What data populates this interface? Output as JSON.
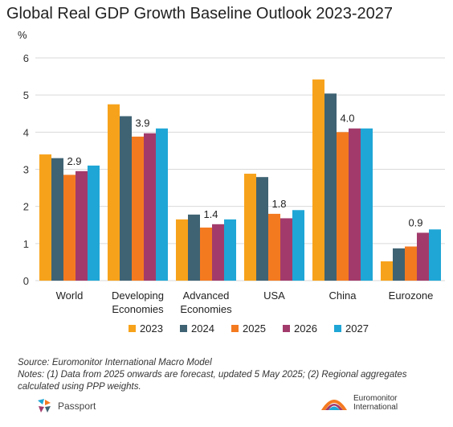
{
  "header": {
    "title": "Global Real GDP Growth Baseline Outlook 2023-2027",
    "unit": "%"
  },
  "chart_data": {
    "type": "bar",
    "title": "Global Real GDP Growth Baseline Outlook 2023-2027",
    "ylabel": "%",
    "xlabel": "",
    "ylim": [
      0,
      6
    ],
    "yticks": [
      0,
      1,
      2,
      3,
      4,
      5,
      6
    ],
    "grid": true,
    "legend_position": "bottom",
    "categories": [
      [
        "World"
      ],
      [
        "Developing",
        "Economies"
      ],
      [
        "Advanced",
        "Economies"
      ],
      [
        "USA"
      ],
      [
        "China"
      ],
      [
        "Eurozone"
      ]
    ],
    "series": [
      {
        "name": "2023",
        "color": "#F7A21B",
        "values": [
          3.4,
          4.75,
          1.65,
          2.88,
          5.42,
          0.52
        ]
      },
      {
        "name": "2024",
        "color": "#3F6373",
        "values": [
          3.3,
          4.43,
          1.78,
          2.79,
          5.04,
          0.87
        ]
      },
      {
        "name": "2025",
        "color": "#F47A20",
        "values": [
          2.85,
          3.88,
          1.43,
          1.8,
          4.0,
          0.92
        ]
      },
      {
        "name": "2026",
        "color": "#A23B6B",
        "values": [
          2.95,
          3.97,
          1.52,
          1.68,
          4.1,
          1.29
        ]
      },
      {
        "name": "2027",
        "color": "#1FA6D6",
        "values": [
          3.1,
          4.1,
          1.65,
          1.9,
          4.1,
          1.38
        ]
      }
    ],
    "annotations": [
      {
        "category_index": 0,
        "text": "2.9"
      },
      {
        "category_index": 1,
        "text": "3.9"
      },
      {
        "category_index": 2,
        "text": "1.4"
      },
      {
        "category_index": 3,
        "text": "1.8"
      },
      {
        "category_index": 4,
        "text": "4.0"
      },
      {
        "category_index": 5,
        "text": "0.9"
      }
    ]
  },
  "footer": {
    "source": "Source: Euromonitor International Macro Model",
    "notes": "Notes: (1) Data from 2025 onwards are forecast, updated 5 May 2025; (2) Regional aggregates calculated using PPP weights."
  },
  "logos": {
    "left_name": "Passport",
    "right_name_line1": "Euromonitor",
    "right_name_line2": "International"
  }
}
